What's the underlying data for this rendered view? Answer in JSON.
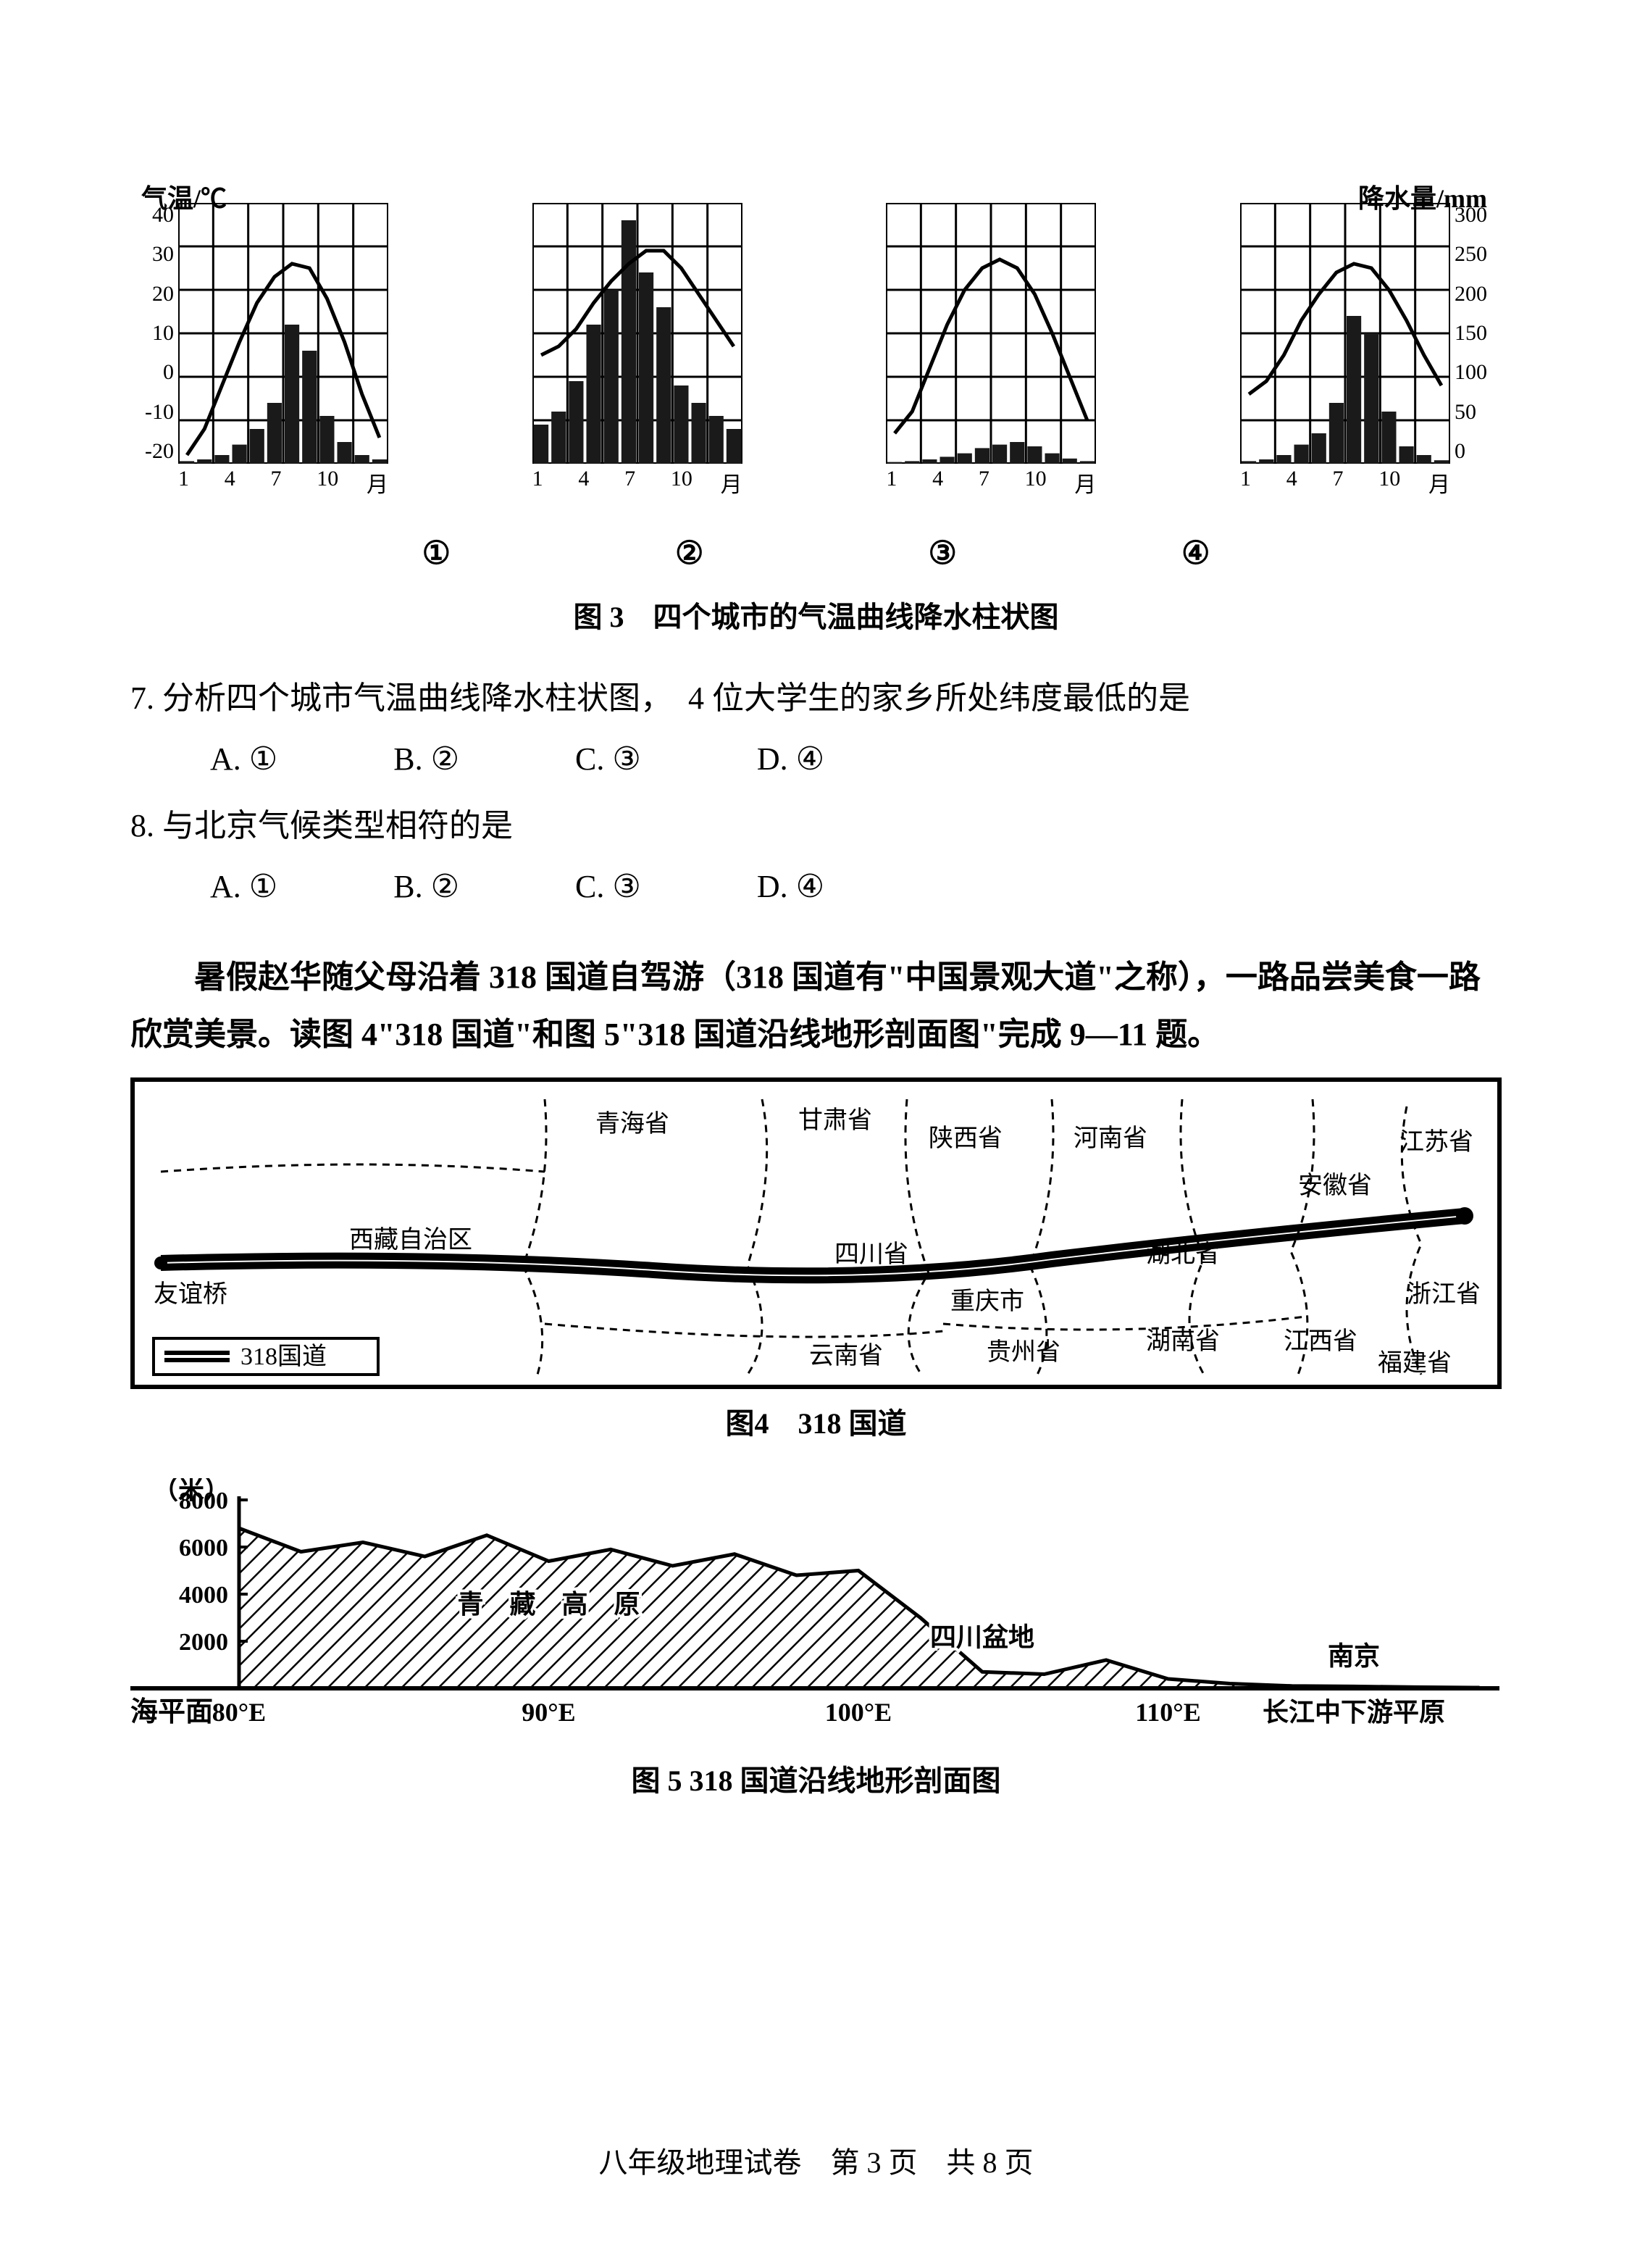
{
  "axis_labels": {
    "temp": "气温/℃",
    "precip": "降水量/mm"
  },
  "climate_charts": {
    "temp_ticks": [
      "40",
      "30",
      "20",
      "10",
      "0",
      "-10",
      "-20"
    ],
    "precip_ticks": [
      "300",
      "250",
      "200",
      "150",
      "100",
      "50",
      "0"
    ],
    "x_ticks": [
      "1",
      "4",
      "7",
      "10",
      "月"
    ],
    "charts": [
      {
        "id": 1,
        "temp_curve": [
          -18,
          -12,
          -2,
          8,
          17,
          23,
          26,
          25,
          18,
          8,
          -4,
          -14
        ],
        "precip_bars": [
          3,
          5,
          10,
          22,
          40,
          70,
          160,
          130,
          55,
          25,
          10,
          5
        ]
      },
      {
        "id": 2,
        "temp_curve": [
          5,
          7,
          11,
          17,
          22,
          26,
          29,
          29,
          25,
          19,
          13,
          7
        ],
        "precip_bars": [
          45,
          60,
          95,
          160,
          200,
          280,
          220,
          180,
          90,
          70,
          55,
          40
        ]
      },
      {
        "id": 3,
        "temp_curve": [
          -13,
          -8,
          2,
          12,
          20,
          25,
          27,
          25,
          19,
          10,
          0,
          -10
        ],
        "precip_bars": [
          2,
          3,
          5,
          8,
          12,
          18,
          22,
          25,
          20,
          12,
          6,
          3
        ]
      },
      {
        "id": 4,
        "temp_curve": [
          -4,
          -1,
          5,
          13,
          19,
          24,
          26,
          25,
          20,
          13,
          5,
          -2
        ],
        "precip_bars": [
          3,
          5,
          10,
          22,
          35,
          70,
          170,
          150,
          60,
          20,
          10,
          4
        ]
      }
    ],
    "bar_color": "#1a1a1a",
    "line_color": "#000000",
    "grid_color": "#000000",
    "bg_color": "#ffffff",
    "temp_range": [
      -20,
      40
    ],
    "precip_range": [
      0,
      300
    ]
  },
  "chart_labels": {
    "c1": "①",
    "c2": "②",
    "c3": "③",
    "c4": "④"
  },
  "fig3_caption": "图 3　四个城市的气温曲线降水柱状图",
  "q7": {
    "text": "7. 分析四个城市气温曲线降水柱状图，　4 位大学生的家乡所处纬度最低的是",
    "A": "A. ①",
    "B": "B. ②",
    "C": "C. ③",
    "D": "D. ④"
  },
  "q8": {
    "text": "8. 与北京气候类型相符的是",
    "A": "A. ①",
    "B": "B. ②",
    "C": "C. ③",
    "D": "D. ④"
  },
  "passage": "暑假赵华随父母沿着 318 国道自驾游（318 国道有\"中国景观大道\"之称），一路品尝美食一路欣赏美景。读图 4\"318 国道\"和图 5\"318 国道沿线地形剖面图\"完成 9—11 题。",
  "map": {
    "title": "图4　318 国道",
    "provinces": [
      "青海省",
      "甘肃省",
      "陕西省",
      "河南省",
      "江苏省",
      "安徽省",
      "西藏自治区",
      "四川省",
      "湖北省",
      "重庆市",
      "云南省",
      "贵州省",
      "湖南省",
      "江西省",
      "浙江省",
      "福建省"
    ],
    "highway_label": "318国道",
    "start_point": "友谊桥",
    "line_color": "#000000",
    "border_color": "#000000"
  },
  "profile": {
    "title": "图 5 318 国道沿线地形剖面图",
    "y_label": "（米）",
    "y_ticks": [
      "8000",
      "6000",
      "4000",
      "2000"
    ],
    "sea_level": "海平面",
    "x_ticks": [
      "80°E",
      "90°E",
      "100°E",
      "110°E"
    ],
    "region_labels": [
      "青　藏　高　原",
      "四川盆地",
      "南京",
      "长江中下游平原"
    ],
    "elevation_points": [
      {
        "x": 80,
        "y": 6800
      },
      {
        "x": 82,
        "y": 5800
      },
      {
        "x": 84,
        "y": 6200
      },
      {
        "x": 86,
        "y": 5600
      },
      {
        "x": 88,
        "y": 6500
      },
      {
        "x": 90,
        "y": 5400
      },
      {
        "x": 92,
        "y": 5900
      },
      {
        "x": 94,
        "y": 5200
      },
      {
        "x": 96,
        "y": 5700
      },
      {
        "x": 98,
        "y": 4800
      },
      {
        "x": 100,
        "y": 5000
      },
      {
        "x": 102,
        "y": 3000
      },
      {
        "x": 104,
        "y": 700
      },
      {
        "x": 106,
        "y": 600
      },
      {
        "x": 108,
        "y": 1200
      },
      {
        "x": 110,
        "y": 400
      },
      {
        "x": 112,
        "y": 200
      },
      {
        "x": 114,
        "y": 100
      },
      {
        "x": 116,
        "y": 80
      },
      {
        "x": 118,
        "y": 50
      },
      {
        "x": 120,
        "y": 30
      }
    ],
    "fill_pattern": "hatch",
    "line_color": "#000000"
  },
  "footer": "八年级地理试卷　第 3 页　共 8 页"
}
